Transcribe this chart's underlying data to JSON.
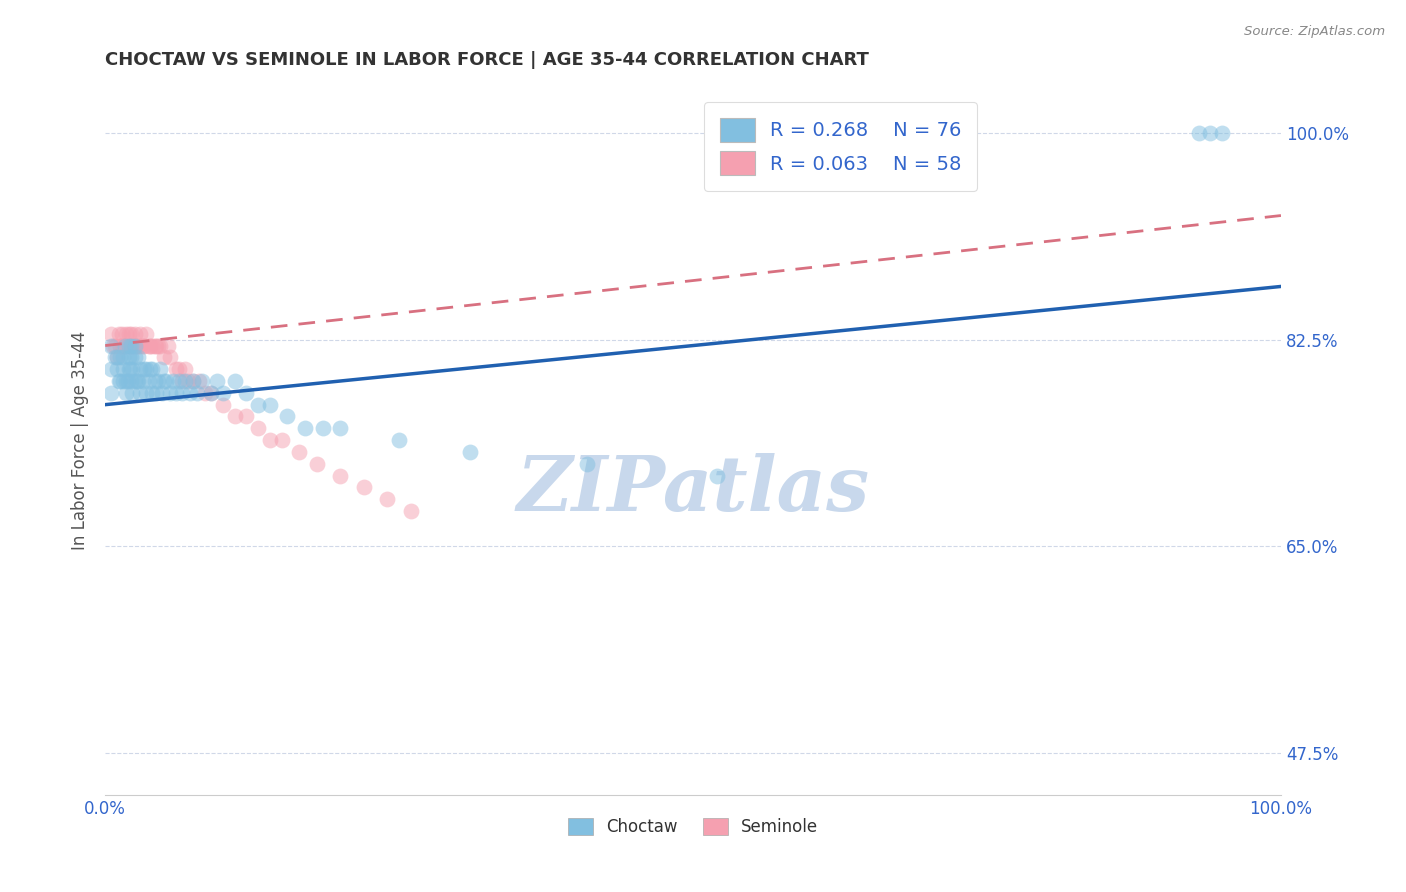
{
  "title": "CHOCTAW VS SEMINOLE IN LABOR FORCE | AGE 35-44 CORRELATION CHART",
  "source_text": "Source: ZipAtlas.com",
  "ylabel": "In Labor Force | Age 35-44",
  "xlim": [
    0.0,
    1.0
  ],
  "ylim": [
    0.44,
    1.04
  ],
  "yticks": [
    0.475,
    0.65,
    0.825,
    1.0
  ],
  "ytick_labels": [
    "47.5%",
    "65.0%",
    "82.5%",
    "100.0%"
  ],
  "xtick_labels": [
    "0.0%",
    "100.0%"
  ],
  "choctaw_R": 0.268,
  "choctaw_N": 76,
  "seminole_R": 0.063,
  "seminole_N": 58,
  "choctaw_color": "#82bfe0",
  "seminole_color": "#f5a0b0",
  "choctaw_line_color": "#2060b0",
  "seminole_line_color": "#d87080",
  "background_color": "#ffffff",
  "grid_color": "#d0d8e8",
  "watermark_color": "#c8d8ec",
  "choctaw_x": [
    0.005,
    0.005,
    0.005,
    0.008,
    0.01,
    0.01,
    0.012,
    0.013,
    0.013,
    0.015,
    0.015,
    0.015,
    0.017,
    0.018,
    0.018,
    0.019,
    0.02,
    0.02,
    0.02,
    0.021,
    0.022,
    0.022,
    0.022,
    0.023,
    0.023,
    0.025,
    0.025,
    0.025,
    0.027,
    0.028,
    0.028,
    0.03,
    0.03,
    0.032,
    0.033,
    0.035,
    0.035,
    0.037,
    0.038,
    0.04,
    0.04,
    0.042,
    0.043,
    0.045,
    0.047,
    0.048,
    0.05,
    0.052,
    0.055,
    0.058,
    0.06,
    0.063,
    0.065,
    0.068,
    0.072,
    0.075,
    0.078,
    0.082,
    0.09,
    0.095,
    0.1,
    0.11,
    0.12,
    0.13,
    0.14,
    0.155,
    0.17,
    0.185,
    0.2,
    0.25,
    0.31,
    0.41,
    0.52,
    0.93,
    0.94,
    0.95
  ],
  "choctaw_y": [
    0.82,
    0.8,
    0.78,
    0.81,
    0.8,
    0.81,
    0.79,
    0.79,
    0.81,
    0.79,
    0.8,
    0.81,
    0.82,
    0.78,
    0.79,
    0.79,
    0.8,
    0.81,
    0.82,
    0.8,
    0.79,
    0.81,
    0.82,
    0.78,
    0.8,
    0.79,
    0.81,
    0.82,
    0.79,
    0.79,
    0.81,
    0.78,
    0.8,
    0.79,
    0.8,
    0.78,
    0.8,
    0.79,
    0.8,
    0.78,
    0.8,
    0.79,
    0.78,
    0.79,
    0.8,
    0.78,
    0.79,
    0.79,
    0.78,
    0.79,
    0.78,
    0.79,
    0.78,
    0.79,
    0.78,
    0.79,
    0.78,
    0.79,
    0.78,
    0.79,
    0.78,
    0.79,
    0.78,
    0.77,
    0.77,
    0.76,
    0.75,
    0.75,
    0.75,
    0.74,
    0.73,
    0.72,
    0.71,
    1.0,
    1.0,
    1.0
  ],
  "seminole_x": [
    0.005,
    0.007,
    0.008,
    0.01,
    0.012,
    0.013,
    0.013,
    0.014,
    0.015,
    0.015,
    0.017,
    0.018,
    0.018,
    0.02,
    0.02,
    0.022,
    0.022,
    0.023,
    0.025,
    0.025,
    0.027,
    0.028,
    0.03,
    0.03,
    0.032,
    0.033,
    0.035,
    0.037,
    0.038,
    0.04,
    0.042,
    0.043,
    0.045,
    0.047,
    0.05,
    0.053,
    0.055,
    0.06,
    0.063,
    0.065,
    0.068,
    0.07,
    0.075,
    0.08,
    0.085,
    0.09,
    0.1,
    0.11,
    0.12,
    0.13,
    0.14,
    0.15,
    0.165,
    0.18,
    0.2,
    0.22,
    0.24,
    0.26
  ],
  "seminole_y": [
    0.83,
    0.82,
    0.82,
    0.81,
    0.83,
    0.82,
    0.82,
    0.83,
    0.82,
    0.82,
    0.82,
    0.83,
    0.82,
    0.82,
    0.83,
    0.82,
    0.83,
    0.82,
    0.82,
    0.83,
    0.82,
    0.82,
    0.82,
    0.83,
    0.82,
    0.82,
    0.83,
    0.82,
    0.82,
    0.82,
    0.82,
    0.82,
    0.82,
    0.82,
    0.81,
    0.82,
    0.81,
    0.8,
    0.8,
    0.79,
    0.8,
    0.79,
    0.79,
    0.79,
    0.78,
    0.78,
    0.77,
    0.76,
    0.76,
    0.75,
    0.74,
    0.74,
    0.73,
    0.72,
    0.71,
    0.7,
    0.69,
    0.68
  ],
  "choctaw_trend_x": [
    0.0,
    1.0
  ],
  "choctaw_trend_y": [
    0.77,
    0.87
  ],
  "seminole_trend_x": [
    0.0,
    1.0
  ],
  "seminole_trend_y": [
    0.82,
    0.93
  ]
}
